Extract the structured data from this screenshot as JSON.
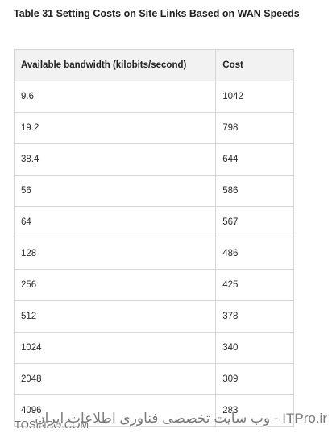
{
  "caption": "Table 31 Setting Costs on Site Links Based on WAN Speeds",
  "table": {
    "headers": [
      "Available bandwidth (kilobits/second)",
      "Cost"
    ],
    "rows": [
      [
        "9.6",
        "1042"
      ],
      [
        "19.2",
        "798"
      ],
      [
        "38.4",
        "644"
      ],
      [
        "56",
        "586"
      ],
      [
        "64",
        "567"
      ],
      [
        "128",
        "486"
      ],
      [
        "256",
        "425"
      ],
      [
        "512",
        "378"
      ],
      [
        "1024",
        "340"
      ],
      [
        "2048",
        "309"
      ],
      [
        "4096",
        "283"
      ]
    ]
  },
  "watermark": {
    "main": "ITPro.ir - وب سایت تخصصی فناوری اطلاعات ایران",
    "sub": "TOSINSO.COM"
  }
}
